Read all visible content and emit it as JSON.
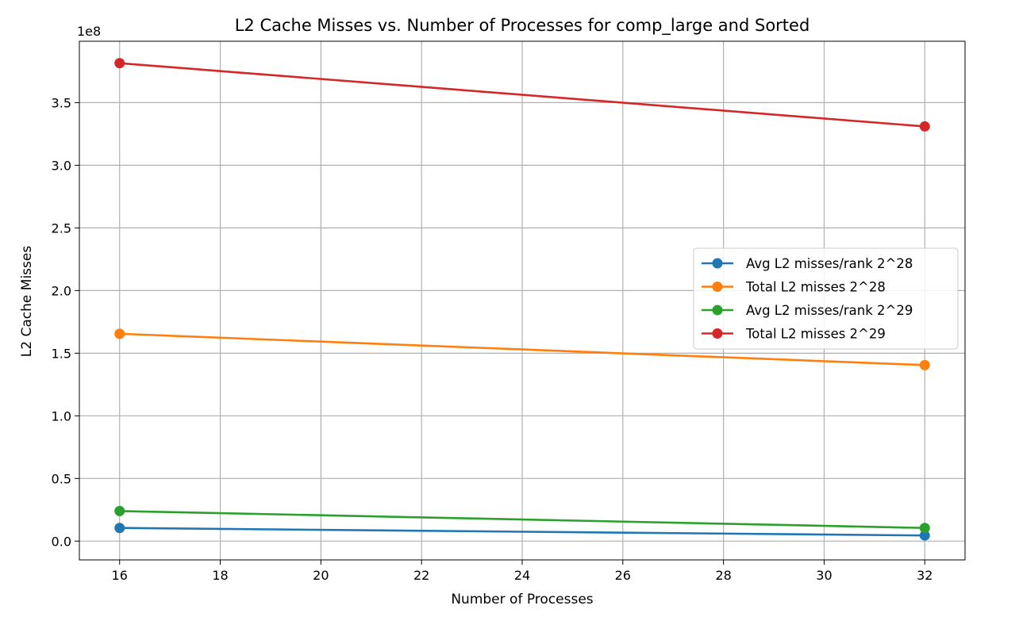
{
  "chart_data": {
    "type": "line",
    "title": "L2 Cache Misses vs. Number of Processes for comp_large and Sorted",
    "xlabel": "Number of Processes",
    "ylabel": "L2 Cache Misses",
    "y_offset_label": "1e8",
    "x": [
      16,
      32
    ],
    "xlim": [
      15.2,
      32.8
    ],
    "ylim": [
      -0.15,
      3.99
    ],
    "x_scale": "linear",
    "y_unit_multiplier": 100000000,
    "x_ticks": [
      16,
      18,
      20,
      22,
      24,
      26,
      28,
      30,
      32
    ],
    "x_tick_labels": [
      "16",
      "18",
      "20",
      "22",
      "24",
      "26",
      "28",
      "30",
      "32"
    ],
    "y_ticks": [
      0.0,
      0.5,
      1.0,
      1.5,
      2.0,
      2.5,
      3.0,
      3.5
    ],
    "y_tick_labels": [
      "0.0",
      "0.5",
      "1.0",
      "1.5",
      "2.0",
      "2.5",
      "3.0",
      "3.5"
    ],
    "grid": true,
    "legend_position": "center-right",
    "series": [
      {
        "name": "Avg L2 misses/rank 2^28",
        "color": "#1f77b4",
        "values": [
          0.105,
          0.045
        ]
      },
      {
        "name": "Total L2 misses 2^28",
        "color": "#ff7f0e",
        "values": [
          1.655,
          1.405
        ]
      },
      {
        "name": "Avg L2 misses/rank 2^29",
        "color": "#2ca02c",
        "values": [
          0.24,
          0.105
        ]
      },
      {
        "name": "Total L2 misses 2^29",
        "color": "#d62728",
        "values": [
          3.815,
          3.31
        ]
      }
    ]
  }
}
